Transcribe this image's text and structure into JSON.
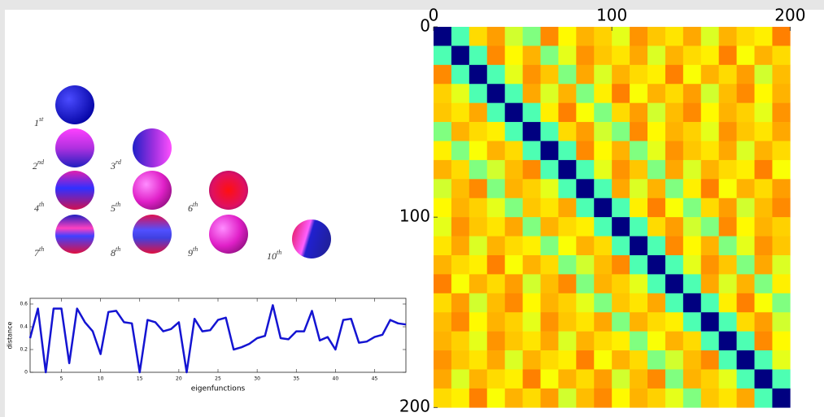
{
  "eigenfunction_labels": [
    {
      "text": "1",
      "sup": "st"
    },
    {
      "text": "2",
      "sup": "nd"
    },
    {
      "text": "3",
      "sup": "rd"
    },
    {
      "text": "4",
      "sup": "th"
    },
    {
      "text": "5",
      "sup": "th"
    },
    {
      "text": "6",
      "sup": "th"
    },
    {
      "text": "7",
      "sup": "th"
    },
    {
      "text": "8",
      "sup": "th"
    },
    {
      "text": "9",
      "sup": "th"
    },
    {
      "text": "10",
      "sup": "th"
    }
  ],
  "chart_data": [
    {
      "type": "line",
      "xlabel": "eigenfunctions",
      "ylabel": "distance",
      "x": [
        1,
        2,
        3,
        4,
        5,
        6,
        7,
        8,
        9,
        10,
        11,
        12,
        13,
        14,
        15,
        16,
        17,
        18,
        19,
        20,
        21,
        22,
        23,
        24,
        25,
        26,
        27,
        28,
        29,
        30,
        31,
        32,
        33,
        34,
        35,
        36,
        37,
        38,
        39,
        40,
        41,
        42,
        43,
        44,
        45,
        46,
        47,
        48,
        49
      ],
      "values": [
        0.3,
        0.56,
        0,
        0.56,
        0.56,
        0.08,
        0.56,
        0.44,
        0.36,
        0.16,
        0.53,
        0.54,
        0.44,
        0.43,
        0,
        0.46,
        0.44,
        0.36,
        0.38,
        0.44,
        0,
        0.47,
        0.36,
        0.37,
        0.46,
        0.48,
        0.2,
        0.22,
        0.25,
        0.3,
        0.32,
        0.59,
        0.3,
        0.29,
        0.36,
        0.36,
        0.54,
        0.28,
        0.31,
        0.2,
        0.46,
        0.47,
        0.26,
        0.27,
        0.31,
        0.33,
        0.46,
        0.43,
        0.42
      ],
      "color": "#1414d2",
      "xlim": [
        1,
        49
      ],
      "ylim": [
        0,
        0.65
      ],
      "xticks": [
        5,
        10,
        15,
        20,
        25,
        30,
        35,
        40,
        45
      ],
      "yticks": [
        0,
        0.2,
        0.4,
        0.6
      ]
    },
    {
      "type": "heatmap",
      "colormap": "jet",
      "clim": [
        0,
        1
      ],
      "y_inverted": true,
      "xlim": [
        0,
        219
      ],
      "ylim": [
        0,
        205
      ],
      "xticks": [
        0,
        100,
        200
      ],
      "yticks": [
        0,
        100,
        200
      ],
      "bins": [
        0,
        10,
        20,
        30,
        40,
        50,
        60,
        70,
        80,
        90,
        100,
        110,
        120,
        130,
        140,
        150,
        160,
        170,
        180,
        190,
        200
      ],
      "matrix": [
        [
          0,
          0.45,
          0.66,
          0.72,
          0.58,
          0.5,
          0.74,
          0.63,
          0.7,
          0.67,
          0.6,
          0.73,
          0.68,
          0.65,
          0.71,
          0.59,
          0.7,
          0.66,
          0.64,
          0.75
        ],
        [
          0.45,
          0,
          0.45,
          0.74,
          0.63,
          0.7,
          0.5,
          0.6,
          0.73,
          0.68,
          0.65,
          0.71,
          0.59,
          0.7,
          0.66,
          0.64,
          0.75,
          0.62,
          0.7,
          0.66
        ],
        [
          0.74,
          0.45,
          0,
          0.45,
          0.6,
          0.73,
          0.68,
          0.5,
          0.71,
          0.59,
          0.7,
          0.66,
          0.64,
          0.75,
          0.62,
          0.7,
          0.66,
          0.72,
          0.58,
          0.69
        ],
        [
          0.67,
          0.6,
          0.45,
          0,
          0.45,
          0.71,
          0.59,
          0.7,
          0.5,
          0.64,
          0.75,
          0.62,
          0.7,
          0.66,
          0.72,
          0.58,
          0.69,
          0.74,
          0.63,
          0.7
        ],
        [
          0.68,
          0.65,
          0.71,
          0.45,
          0,
          0.45,
          0.64,
          0.75,
          0.62,
          0.5,
          0.66,
          0.72,
          0.58,
          0.69,
          0.74,
          0.63,
          0.7,
          0.67,
          0.6,
          0.73
        ],
        [
          0.5,
          0.7,
          0.66,
          0.64,
          0.45,
          0,
          0.45,
          0.66,
          0.72,
          0.58,
          0.5,
          0.74,
          0.63,
          0.7,
          0.67,
          0.6,
          0.73,
          0.68,
          0.65,
          0.71
        ],
        [
          0.64,
          0.5,
          0.62,
          0.7,
          0.66,
          0.45,
          0,
          0.45,
          0.74,
          0.63,
          0.7,
          0.5,
          0.6,
          0.73,
          0.68,
          0.65,
          0.71,
          0.59,
          0.7,
          0.66
        ],
        [
          0.7,
          0.66,
          0.5,
          0.58,
          0.69,
          0.74,
          0.45,
          0,
          0.45,
          0.6,
          0.73,
          0.68,
          0.5,
          0.71,
          0.59,
          0.7,
          0.66,
          0.64,
          0.75,
          0.62
        ],
        [
          0.58,
          0.69,
          0.74,
          0.5,
          0.7,
          0.67,
          0.6,
          0.45,
          0,
          0.45,
          0.71,
          0.59,
          0.7,
          0.5,
          0.64,
          0.75,
          0.62,
          0.7,
          0.66,
          0.72
        ],
        [
          0.63,
          0.7,
          0.67,
          0.6,
          0.5,
          0.68,
          0.65,
          0.71,
          0.45,
          0,
          0.45,
          0.64,
          0.75,
          0.62,
          0.5,
          0.66,
          0.72,
          0.58,
          0.69,
          0.74
        ],
        [
          0.6,
          0.73,
          0.68,
          0.65,
          0.71,
          0.5,
          0.7,
          0.66,
          0.64,
          0.45,
          0,
          0.45,
          0.66,
          0.72,
          0.58,
          0.5,
          0.74,
          0.63,
          0.7,
          0.67
        ],
        [
          0.65,
          0.71,
          0.59,
          0.7,
          0.66,
          0.64,
          0.5,
          0.62,
          0.7,
          0.66,
          0.45,
          0,
          0.45,
          0.74,
          0.63,
          0.7,
          0.5,
          0.6,
          0.73,
          0.68
        ],
        [
          0.7,
          0.66,
          0.64,
          0.75,
          0.62,
          0.7,
          0.66,
          0.5,
          0.58,
          0.69,
          0.74,
          0.45,
          0,
          0.45,
          0.6,
          0.73,
          0.68,
          0.5,
          0.71,
          0.59
        ],
        [
          0.75,
          0.62,
          0.7,
          0.66,
          0.72,
          0.58,
          0.69,
          0.74,
          0.5,
          0.7,
          0.67,
          0.6,
          0.45,
          0,
          0.45,
          0.71,
          0.59,
          0.7,
          0.5,
          0.64
        ],
        [
          0.66,
          0.72,
          0.58,
          0.69,
          0.74,
          0.63,
          0.7,
          0.67,
          0.6,
          0.5,
          0.68,
          0.65,
          0.71,
          0.45,
          0,
          0.45,
          0.64,
          0.75,
          0.62,
          0.5
        ],
        [
          0.69,
          0.74,
          0.63,
          0.7,
          0.67,
          0.6,
          0.73,
          0.68,
          0.65,
          0.71,
          0.5,
          0.7,
          0.66,
          0.64,
          0.45,
          0,
          0.45,
          0.66,
          0.72,
          0.58
        ],
        [
          0.7,
          0.67,
          0.6,
          0.73,
          0.68,
          0.65,
          0.71,
          0.59,
          0.7,
          0.66,
          0.64,
          0.5,
          0.62,
          0.7,
          0.66,
          0.45,
          0,
          0.45,
          0.74,
          0.63
        ],
        [
          0.73,
          0.68,
          0.65,
          0.71,
          0.59,
          0.7,
          0.66,
          0.64,
          0.75,
          0.62,
          0.7,
          0.66,
          0.5,
          0.58,
          0.69,
          0.74,
          0.45,
          0,
          0.45,
          0.6
        ],
        [
          0.71,
          0.59,
          0.7,
          0.66,
          0.64,
          0.75,
          0.62,
          0.7,
          0.66,
          0.72,
          0.58,
          0.69,
          0.74,
          0.5,
          0.7,
          0.67,
          0.6,
          0.45,
          0,
          0.45
        ],
        [
          0.66,
          0.64,
          0.75,
          0.62,
          0.7,
          0.66,
          0.72,
          0.58,
          0.69,
          0.74,
          0.63,
          0.7,
          0.67,
          0.6,
          0.5,
          0.68,
          0.65,
          0.71,
          0.45,
          0
        ]
      ]
    }
  ]
}
